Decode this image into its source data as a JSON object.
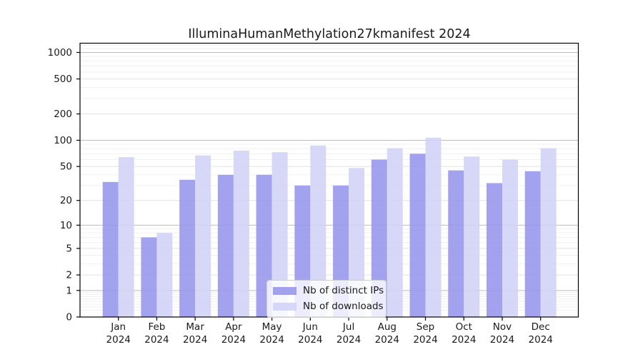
{
  "chart_data": {
    "type": "bar",
    "title": "IlluminaHumanMethylation27kmanifest 2024",
    "categories": [
      "Jan",
      "Feb",
      "Mar",
      "Apr",
      "May",
      "Jun",
      "Jul",
      "Aug",
      "Sep",
      "Oct",
      "Nov",
      "Dec"
    ],
    "x_year": "2024",
    "series": [
      {
        "name": "Nb of distinct IPs",
        "color": "#9595ec",
        "values": [
          33,
          7,
          35,
          40,
          40,
          30,
          30,
          60,
          70,
          45,
          32,
          44
        ]
      },
      {
        "name": "Nb of downloads",
        "color": "#d1d1f7",
        "values": [
          64,
          8,
          67,
          76,
          73,
          87,
          48,
          81,
          107,
          65,
          60,
          81
        ]
      }
    ],
    "y_ticks": [
      0,
      1,
      2,
      5,
      10,
      20,
      50,
      100,
      200,
      500,
      1000
    ],
    "y_scale": "log10(1+value)",
    "ylim": [
      0,
      1262
    ],
    "xlabel": "",
    "ylabel": "",
    "grid": {
      "on": true,
      "major": [
        1,
        10,
        100,
        1000
      ],
      "mid": [
        2,
        5,
        20,
        50,
        200,
        500
      ],
      "minor": [
        0.2,
        0.3,
        0.4,
        0.5,
        0.6,
        0.7,
        0.8,
        0.9,
        3,
        4,
        6,
        7,
        8,
        9,
        30,
        40,
        60,
        70,
        80,
        90,
        300,
        400,
        600,
        700,
        800,
        900,
        1100,
        1200
      ]
    },
    "legend_position": "bottom-center",
    "colors": {
      "grid_major": "#bdbdbd",
      "grid_mid": "#e2e2e2",
      "grid_minor": "#f0f0f0",
      "spine": "#000000",
      "text": "#1a1a1a"
    }
  }
}
